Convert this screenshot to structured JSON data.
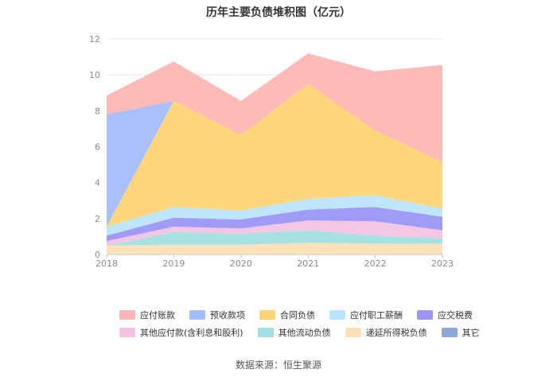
{
  "chart_data": {
    "type": "area",
    "stacked": true,
    "title": "历年主要负债堆积图（亿元）",
    "xlabel": "",
    "ylabel": "",
    "x": [
      "2018",
      "2019",
      "2020",
      "2021",
      "2022",
      "2023"
    ],
    "y_ticks": [
      "0",
      "2",
      "4",
      "6",
      "8",
      "10",
      "12"
    ],
    "ylim": [
      0,
      12
    ],
    "grid": true,
    "legend_position": "bottom",
    "series": [
      {
        "name": "应付账款",
        "color": "#fdb6b3",
        "values": [
          1.05,
          2.2,
          1.9,
          1.7,
          3.3,
          5.4
        ]
      },
      {
        "name": "预收款项",
        "color": "#a4bdfc",
        "values": [
          6.25,
          0.0,
          0.0,
          0.0,
          0.0,
          0.0
        ]
      },
      {
        "name": "合同负债",
        "color": "#ffd474",
        "values": [
          0.0,
          5.9,
          4.2,
          6.4,
          3.6,
          2.6
        ]
      },
      {
        "name": "应付职工薪酬",
        "color": "#bae4fb",
        "values": [
          0.5,
          0.6,
          0.5,
          0.6,
          0.65,
          0.45
        ]
      },
      {
        "name": "应交税费",
        "color": "#9b96f5",
        "values": [
          0.3,
          0.5,
          0.5,
          0.6,
          0.8,
          0.75
        ]
      },
      {
        "name": "其他应付款(含利息和股利)",
        "color": "#f2c4e2",
        "values": [
          0.25,
          0.3,
          0.3,
          0.55,
          0.8,
          0.45
        ]
      },
      {
        "name": "其他流动负债",
        "color": "#a2e0e0",
        "values": [
          0.0,
          0.7,
          0.6,
          0.7,
          0.45,
          0.3
        ]
      },
      {
        "name": "递延所得税负债",
        "color": "#fde0b5",
        "values": [
          0.5,
          0.55,
          0.55,
          0.65,
          0.6,
          0.6
        ]
      },
      {
        "name": "其它",
        "color": "#8da7d6",
        "values": [
          0.0,
          0.0,
          0.0,
          0.0,
          0.0,
          0.0
        ]
      }
    ]
  },
  "source": "数据来源：恒生聚源"
}
